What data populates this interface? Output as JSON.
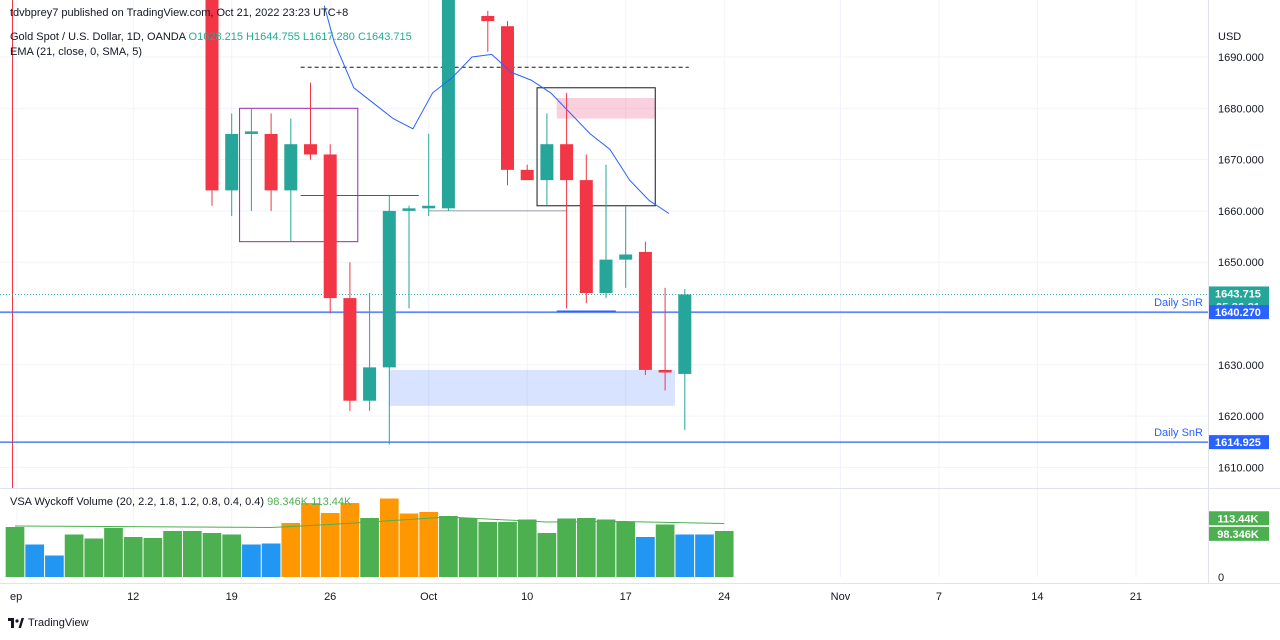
{
  "header": {
    "published": "tdvbprey7 published on TradingView.com, Oct 21, 2022 23:23 UTC+8",
    "symbol": "Gold Spot / U.S. Dollar, 1D, OANDA",
    "ohlc": "O1628.215 H1644.755 L1617.280 C1643.715",
    "ema": "EMA (21, close, 0, SMA, 5)",
    "vsa": "VSA Wyckoff Volume (20, 2.2, 1.8, 1.2, 0.8, 0.4, 0.4)",
    "vsa_values": "98.346K  113.44K"
  },
  "footer": {
    "brand": "TradingView"
  },
  "colors": {
    "up": "#26a69a",
    "down": "#f23645",
    "ema": "#2962ff",
    "snr": "#2962ff",
    "vol_green": "#4caf50",
    "vol_orange": "#ff9800",
    "vol_blue": "#2196f3"
  },
  "chart_data": {
    "type": "candlestick",
    "currency": "USD",
    "y_range": [
      1603,
      1698
    ],
    "y_ticks": [
      1610,
      1620,
      1630,
      1640,
      1650,
      1660,
      1670,
      1680,
      1690
    ],
    "y_tick_labels": [
      "1610.000",
      "1620.000",
      "1630.000",
      "1640.000",
      "1650.000",
      "1660.000",
      "1670.000",
      "1680.000",
      "1690.000"
    ],
    "x_labels": [
      {
        "label": "ep",
        "idx": -9.9
      },
      {
        "label": "12",
        "idx": -4
      },
      {
        "label": "19",
        "idx": 1
      },
      {
        "label": "26",
        "idx": 6
      },
      {
        "label": "Oct",
        "idx": 11
      },
      {
        "label": "10",
        "idx": 16
      },
      {
        "label": "17",
        "idx": 21
      },
      {
        "label": "24",
        "idx": 26
      },
      {
        "label": "Nov",
        "idx": 31.9
      },
      {
        "label": "7",
        "idx": 36.9
      },
      {
        "label": "14",
        "idx": 41.9
      },
      {
        "label": "21",
        "idx": 46.9
      }
    ],
    "candles": [
      {
        "idx": 0,
        "o": 1703,
        "h": 1708,
        "l": 1661,
        "c": 1664
      },
      {
        "idx": 1,
        "o": 1664,
        "h": 1679,
        "l": 1659,
        "c": 1675
      },
      {
        "idx": 2,
        "o": 1675,
        "h": 1680,
        "l": 1660,
        "c": 1675.5
      },
      {
        "idx": 3,
        "o": 1675,
        "h": 1679,
        "l": 1660,
        "c": 1664
      },
      {
        "idx": 4,
        "o": 1664,
        "h": 1678,
        "l": 1654,
        "c": 1673
      },
      {
        "idx": 5,
        "o": 1673,
        "h": 1685,
        "l": 1670,
        "c": 1671
      },
      {
        "idx": 6,
        "o": 1671,
        "h": 1673,
        "l": 1640,
        "c": 1643
      },
      {
        "idx": 7,
        "o": 1643,
        "h": 1650,
        "l": 1621,
        "c": 1623
      },
      {
        "idx": 8,
        "o": 1623,
        "h": 1644,
        "l": 1621,
        "c": 1629.5
      },
      {
        "idx": 9,
        "o": 1629.5,
        "h": 1663,
        "l": 1614.5,
        "c": 1660
      },
      {
        "idx": 10,
        "o": 1660,
        "h": 1661,
        "l": 1641,
        "c": 1660.5
      },
      {
        "idx": 11,
        "o": 1660.5,
        "h": 1675,
        "l": 1659,
        "c": 1661
      },
      {
        "idx": 12,
        "o": 1660.5,
        "h": 1730,
        "l": 1660,
        "c": 1728
      },
      {
        "idx": 14,
        "o": 1698,
        "h": 1699,
        "l": 1691,
        "c": 1697
      },
      {
        "idx": 15,
        "o": 1696,
        "h": 1697,
        "l": 1665,
        "c": 1668
      },
      {
        "idx": 16,
        "o": 1668,
        "h": 1669,
        "l": 1666,
        "c": 1666
      },
      {
        "idx": 17,
        "o": 1666,
        "h": 1679,
        "l": 1661,
        "c": 1673
      },
      {
        "idx": 18,
        "o": 1673,
        "h": 1683,
        "l": 1641,
        "c": 1666
      },
      {
        "idx": 19,
        "o": 1666,
        "h": 1671,
        "l": 1642,
        "c": 1644
      },
      {
        "idx": 20,
        "o": 1644,
        "h": 1669,
        "l": 1643,
        "c": 1650.5
      },
      {
        "idx": 21,
        "o": 1650.5,
        "h": 1661,
        "l": 1645,
        "c": 1651.5
      },
      {
        "idx": 22,
        "o": 1652,
        "h": 1654,
        "l": 1628,
        "c": 1629
      },
      {
        "idx": 23,
        "o": 1629,
        "h": 1645,
        "l": 1625,
        "c": 1628.5
      },
      {
        "idx": 24,
        "o": 1628.215,
        "h": 1644.755,
        "l": 1617.28,
        "c": 1643.715
      }
    ],
    "ema": [
      {
        "idx": 5.7,
        "v": 1700
      },
      {
        "idx": 6.2,
        "v": 1693
      },
      {
        "idx": 7.2,
        "v": 1684
      },
      {
        "idx": 8.2,
        "v": 1681
      },
      {
        "idx": 9.2,
        "v": 1678
      },
      {
        "idx": 10.2,
        "v": 1676
      },
      {
        "idx": 11.2,
        "v": 1683
      },
      {
        "idx": 12.2,
        "v": 1686
      },
      {
        "idx": 13.2,
        "v": 1690
      },
      {
        "idx": 14.2,
        "v": 1690.5
      },
      {
        "idx": 15.2,
        "v": 1687
      },
      {
        "idx": 16.2,
        "v": 1685.5
      },
      {
        "idx": 17.2,
        "v": 1683
      },
      {
        "idx": 18.2,
        "v": 1679
      },
      {
        "idx": 19.2,
        "v": 1675
      },
      {
        "idx": 20.2,
        "v": 1672
      },
      {
        "idx": 21.2,
        "v": 1666
      },
      {
        "idx": 22.2,
        "v": 1662
      },
      {
        "idx": 23.2,
        "v": 1659.5
      }
    ],
    "levels": [
      {
        "label": "Daily SnR",
        "value": 1640.27,
        "tag": "1640.270"
      },
      {
        "label": "Daily SnR",
        "value": 1614.925,
        "tag": "1614.925"
      }
    ],
    "current_price": {
      "value": 1643.715,
      "tag": "1643.715",
      "countdown": "05:36:31"
    },
    "drawings": {
      "purple_box": {
        "idx0": 1.4,
        "idx1": 7.4,
        "p0": 1654,
        "p1": 1680
      },
      "purple_line": {
        "idx0": 4.5,
        "idx1": 10.5,
        "p": 1663
      },
      "dashed_line": {
        "idx0": 4.5,
        "idx1": 24.2,
        "p": 1688
      },
      "gray_line": {
        "idx0": 11,
        "idx1": 18,
        "p": 1660
      },
      "black_box": {
        "idx0": 16.5,
        "idx1": 22.5,
        "p0": 1661,
        "p1": 1684
      },
      "pink_zone": {
        "idx0": 17.5,
        "idx1": 22.5,
        "p0": 1678,
        "p1": 1682
      },
      "blue_zone": {
        "idx0": 9,
        "idx1": 23.5,
        "p0": 1622,
        "p1": 1629
      },
      "short_blue": {
        "idx0": 17.5,
        "idx1": 20.5,
        "p": 1640.4
      }
    },
    "volume": {
      "y_ticks": [
        {
          "v": 0,
          "label": "0"
        }
      ],
      "tags": [
        {
          "v": 113.44,
          "label": "113.44K",
          "color": "#4caf50"
        },
        {
          "v": 98.346,
          "label": "98.346K",
          "color": "#4caf50"
        }
      ],
      "bars": [
        {
          "idx": -10,
          "v": 100,
          "c": "green"
        },
        {
          "idx": -9,
          "v": 65,
          "c": "blue"
        },
        {
          "idx": -8,
          "v": 43,
          "c": "blue"
        },
        {
          "idx": -7,
          "v": 85,
          "c": "green"
        },
        {
          "idx": -6,
          "v": 77,
          "c": "green"
        },
        {
          "idx": -5,
          "v": 98,
          "c": "green"
        },
        {
          "idx": -4,
          "v": 80,
          "c": "green"
        },
        {
          "idx": -3,
          "v": 78,
          "c": "green"
        },
        {
          "idx": -2,
          "v": 92,
          "c": "green"
        },
        {
          "idx": -1,
          "v": 92,
          "c": "green"
        },
        {
          "idx": 0,
          "v": 88,
          "c": "green"
        },
        {
          "idx": 1,
          "v": 85,
          "c": "green"
        },
        {
          "idx": 2,
          "v": 65,
          "c": "blue"
        },
        {
          "idx": 3,
          "v": 67,
          "c": "blue"
        },
        {
          "idx": 4,
          "v": 108,
          "c": "orange"
        },
        {
          "idx": 5,
          "v": 148,
          "c": "orange"
        },
        {
          "idx": 6,
          "v": 128,
          "c": "orange"
        },
        {
          "idx": 7,
          "v": 148,
          "c": "orange"
        },
        {
          "idx": 8,
          "v": 118,
          "c": "green"
        },
        {
          "idx": 9,
          "v": 157,
          "c": "orange"
        },
        {
          "idx": 10,
          "v": 127,
          "c": "orange"
        },
        {
          "idx": 11,
          "v": 130,
          "c": "orange"
        },
        {
          "idx": 12,
          "v": 122,
          "c": "green"
        },
        {
          "idx": 13,
          "v": 118,
          "c": "green"
        },
        {
          "idx": 14,
          "v": 110,
          "c": "green"
        },
        {
          "idx": 15,
          "v": 110,
          "c": "green"
        },
        {
          "idx": 16,
          "v": 115,
          "c": "green"
        },
        {
          "idx": 17,
          "v": 88,
          "c": "green"
        },
        {
          "idx": 18,
          "v": 117,
          "c": "green"
        },
        {
          "idx": 19,
          "v": 118,
          "c": "green"
        },
        {
          "idx": 20,
          "v": 115,
          "c": "green"
        },
        {
          "idx": 21,
          "v": 110,
          "c": "green"
        },
        {
          "idx": 22,
          "v": 80,
          "c": "blue"
        },
        {
          "idx": 23,
          "v": 105,
          "c": "green"
        },
        {
          "idx": 24,
          "v": 85,
          "c": "blue"
        },
        {
          "idx": 25,
          "v": 85,
          "c": "blue"
        },
        {
          "idx": 26,
          "v": 92,
          "c": "green"
        }
      ],
      "ma": [
        {
          "idx": -10,
          "v": 102
        },
        {
          "idx": 3,
          "v": 99
        },
        {
          "idx": 6,
          "v": 105
        },
        {
          "idx": 12,
          "v": 120
        },
        {
          "idx": 17,
          "v": 110
        },
        {
          "idx": 21,
          "v": 111
        },
        {
          "idx": 26,
          "v": 107
        }
      ]
    }
  }
}
